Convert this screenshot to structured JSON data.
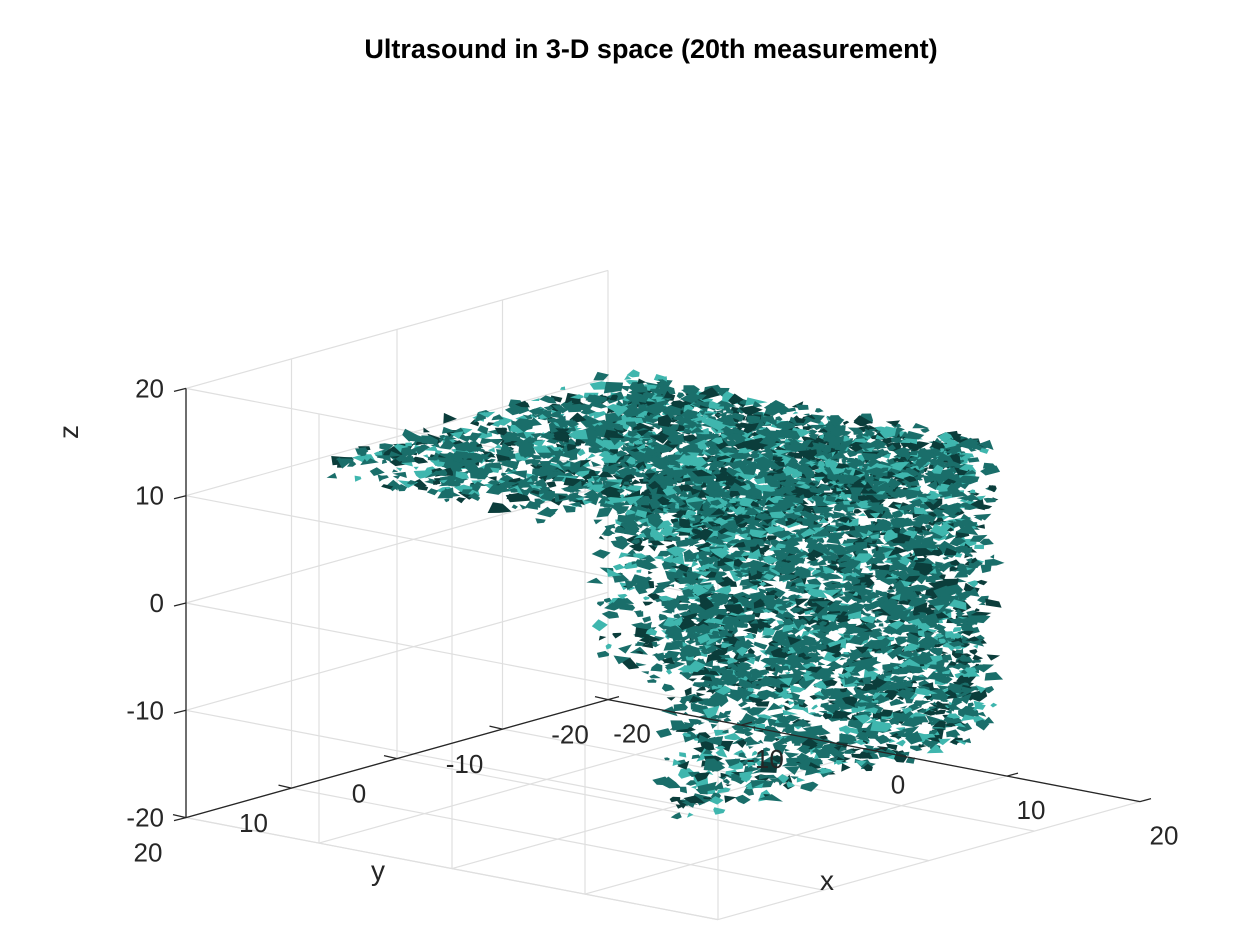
{
  "chart_data": {
    "type": "isosurface",
    "title": "Ultrasound in 3-D space (20th measurement)",
    "xlabel": "x",
    "ylabel": "y",
    "zlabel": "z",
    "xlim": [
      -20,
      20
    ],
    "ylim": [
      -20,
      20
    ],
    "zlim": [
      -20,
      20
    ],
    "xticks": [
      "-20",
      "-10",
      "0",
      "10",
      "20"
    ],
    "yticks": [
      "-20",
      "-10",
      "0",
      "10",
      "20"
    ],
    "zticks": [
      "-20",
      "-10",
      "0",
      "10",
      "20"
    ],
    "volume_extent": {
      "x": [
        -14,
        14
      ],
      "y": [
        -14,
        14
      ],
      "z": [
        -14,
        14
      ]
    },
    "grid": true,
    "surface_color": "#1a6e6a",
    "highlight_color": "#3fb6ae",
    "shadow_color": "#0b3d3b"
  }
}
